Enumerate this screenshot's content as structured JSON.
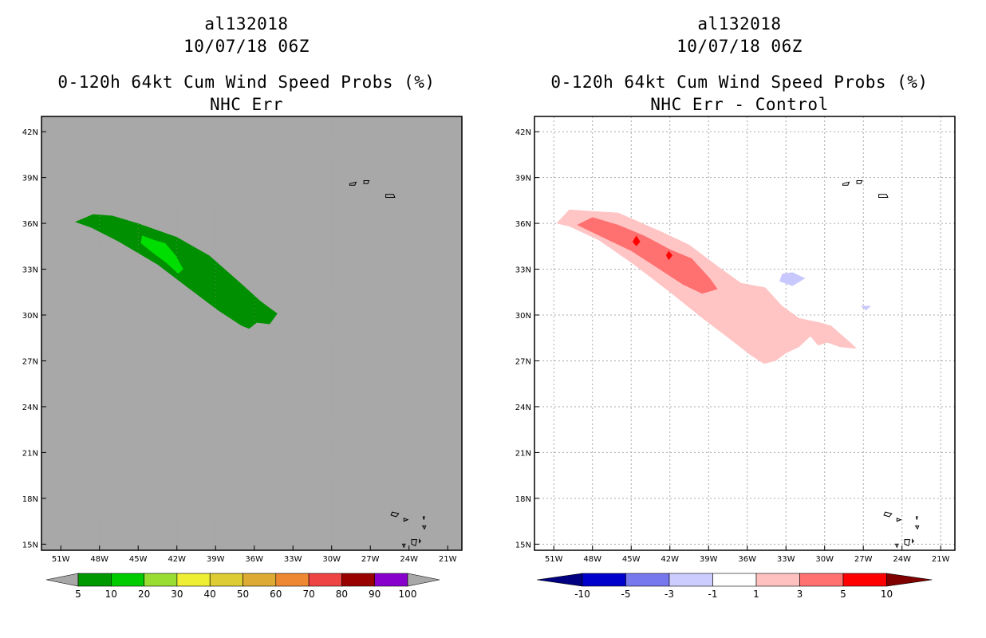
{
  "chart_data": [
    {
      "type": "contour-map",
      "title_lines": [
        "al132018",
        "10/07/18 06Z",
        "0-120h 64kt Cum Wind Speed Probs (%)",
        "NHC Err"
      ],
      "x_ticks": [
        "51W",
        "48W",
        "45W",
        "42W",
        "39W",
        "36W",
        "33W",
        "30W",
        "27W",
        "24W",
        "21W"
      ],
      "y_ticks": [
        "42N",
        "39N",
        "36N",
        "33N",
        "30N",
        "27N",
        "24N",
        "21N",
        "18N",
        "15N"
      ],
      "grid": false,
      "background": "#a8a8a8",
      "colorbar": {
        "labels": [
          "5",
          "10",
          "20",
          "30",
          "40",
          "50",
          "60",
          "70",
          "80",
          "90",
          "100"
        ],
        "colors": [
          "#009900",
          "#00cc00",
          "#99dd33",
          "#eeee33",
          "#ddcc33",
          "#ddaa33",
          "#ee8833",
          "#ee4444",
          "#990000",
          "#8800cc"
        ],
        "end_colors": [
          "#a8a8a8",
          "#a8a8a8"
        ]
      },
      "regions": [
        {
          "level": "5-10",
          "color": "#008f00",
          "lonlat": [
            [
              -49.9,
              36.1
            ],
            [
              -48.5,
              36.6
            ],
            [
              -47.0,
              36.5
            ],
            [
              -45.0,
              36.0
            ],
            [
              -42.0,
              35.1
            ],
            [
              -39.5,
              33.9
            ],
            [
              -37.2,
              32.2
            ],
            [
              -35.5,
              30.9
            ],
            [
              -34.2,
              30.1
            ],
            [
              -34.8,
              29.4
            ],
            [
              -35.8,
              29.5
            ],
            [
              -36.4,
              29.1
            ],
            [
              -37.0,
              29.3
            ],
            [
              -38.8,
              30.3
            ],
            [
              -41.0,
              31.7
            ],
            [
              -43.5,
              33.3
            ],
            [
              -46.5,
              34.8
            ],
            [
              -48.6,
              35.7
            ]
          ]
        },
        {
          "level": "10-20",
          "color": "#00dd00",
          "lonlat": [
            [
              -44.7,
              35.2
            ],
            [
              -43.7,
              34.9
            ],
            [
              -42.9,
              34.7
            ],
            [
              -42.1,
              33.9
            ],
            [
              -41.5,
              33.0
            ],
            [
              -41.9,
              32.7
            ],
            [
              -42.8,
              33.4
            ],
            [
              -43.9,
              34.1
            ],
            [
              -44.8,
              34.7
            ]
          ]
        }
      ],
      "island_groups": [
        "Azores",
        "Cape Verde"
      ]
    },
    {
      "type": "contour-map",
      "title_lines": [
        "al132018",
        "10/07/18 06Z",
        "0-120h 64kt Cum Wind Speed Probs (%)",
        "NHC Err - Control"
      ],
      "x_ticks": [
        "51W",
        "48W",
        "45W",
        "42W",
        "39W",
        "36W",
        "33W",
        "30W",
        "27W",
        "24W",
        "21W"
      ],
      "y_ticks": [
        "42N",
        "39N",
        "36N",
        "33N",
        "30N",
        "27N",
        "24N",
        "21N",
        "18N",
        "15N"
      ],
      "grid": true,
      "background": "#ffffff",
      "colorbar": {
        "labels": [
          "-10",
          "-5",
          "-3",
          "-1",
          "1",
          "3",
          "5",
          "10"
        ],
        "colors": [
          "#0000cc",
          "#7777ee",
          "#ccccff",
          "#ffffff",
          "#ffc0c0",
          "#ff7070",
          "#ff0000"
        ],
        "end_colors": [
          "#000080",
          "#800000"
        ]
      },
      "regions": [
        {
          "level": "1-3",
          "color": "#ffc4c4",
          "lonlat": [
            [
              -50.8,
              36.0
            ],
            [
              -49.8,
              36.9
            ],
            [
              -48.0,
              36.8
            ],
            [
              -46.0,
              36.7
            ],
            [
              -42.5,
              35.4
            ],
            [
              -40.5,
              34.6
            ],
            [
              -38.3,
              33.2
            ],
            [
              -36.5,
              32.1
            ],
            [
              -34.6,
              31.8
            ],
            [
              -33.3,
              30.6
            ],
            [
              -32.0,
              29.8
            ],
            [
              -30.3,
              29.5
            ],
            [
              -29.5,
              29.3
            ],
            [
              -28.0,
              28.2
            ],
            [
              -27.5,
              27.8
            ],
            [
              -28.8,
              27.9
            ],
            [
              -29.8,
              28.2
            ],
            [
              -30.5,
              28.0
            ],
            [
              -31.1,
              28.6
            ],
            [
              -32.0,
              27.9
            ],
            [
              -33.0,
              27.5
            ],
            [
              -33.8,
              27.0
            ],
            [
              -34.7,
              26.8
            ],
            [
              -35.8,
              27.4
            ],
            [
              -37.3,
              28.4
            ],
            [
              -39.5,
              29.8
            ],
            [
              -42.0,
              31.5
            ],
            [
              -44.8,
              33.3
            ],
            [
              -47.5,
              34.9
            ],
            [
              -49.8,
              35.8
            ]
          ]
        },
        {
          "level": "3-5",
          "color": "#ff7070",
          "lonlat": [
            [
              -49.2,
              35.9
            ],
            [
              -48.0,
              36.4
            ],
            [
              -46.0,
              35.9
            ],
            [
              -44.0,
              35.2
            ],
            [
              -42.0,
              34.3
            ],
            [
              -40.3,
              33.7
            ],
            [
              -38.9,
              32.4
            ],
            [
              -38.3,
              31.7
            ],
            [
              -39.5,
              31.4
            ],
            [
              -41.0,
              32.0
            ],
            [
              -43.0,
              33.1
            ],
            [
              -45.0,
              34.2
            ],
            [
              -47.5,
              35.2
            ]
          ]
        },
        {
          "level": "5-10",
          "color": "#ff0000",
          "lonlat": [
            [
              -44.6,
              35.2
            ],
            [
              -44.3,
              34.8
            ],
            [
              -44.6,
              34.5
            ],
            [
              -44.9,
              34.8
            ]
          ]
        },
        {
          "level": "5-10",
          "color": "#ff0000",
          "lonlat": [
            [
              -42.1,
              34.2
            ],
            [
              -41.8,
              33.9
            ],
            [
              -42.1,
              33.6
            ],
            [
              -42.3,
              33.9
            ]
          ]
        },
        {
          "level": "-3--1",
          "color": "#c8c8ff",
          "lonlat": [
            [
              -33.3,
              32.7
            ],
            [
              -32.5,
              32.8
            ],
            [
              -31.5,
              32.4
            ],
            [
              -32.5,
              31.9
            ],
            [
              -33.5,
              32.2
            ]
          ]
        },
        {
          "level": "-3--1",
          "color": "#c8c8ff",
          "lonlat": [
            [
              -27.2,
              30.6
            ],
            [
              -26.4,
              30.6
            ],
            [
              -26.8,
              30.3
            ]
          ]
        }
      ],
      "island_groups": [
        "Azores",
        "Cape Verde"
      ]
    }
  ]
}
